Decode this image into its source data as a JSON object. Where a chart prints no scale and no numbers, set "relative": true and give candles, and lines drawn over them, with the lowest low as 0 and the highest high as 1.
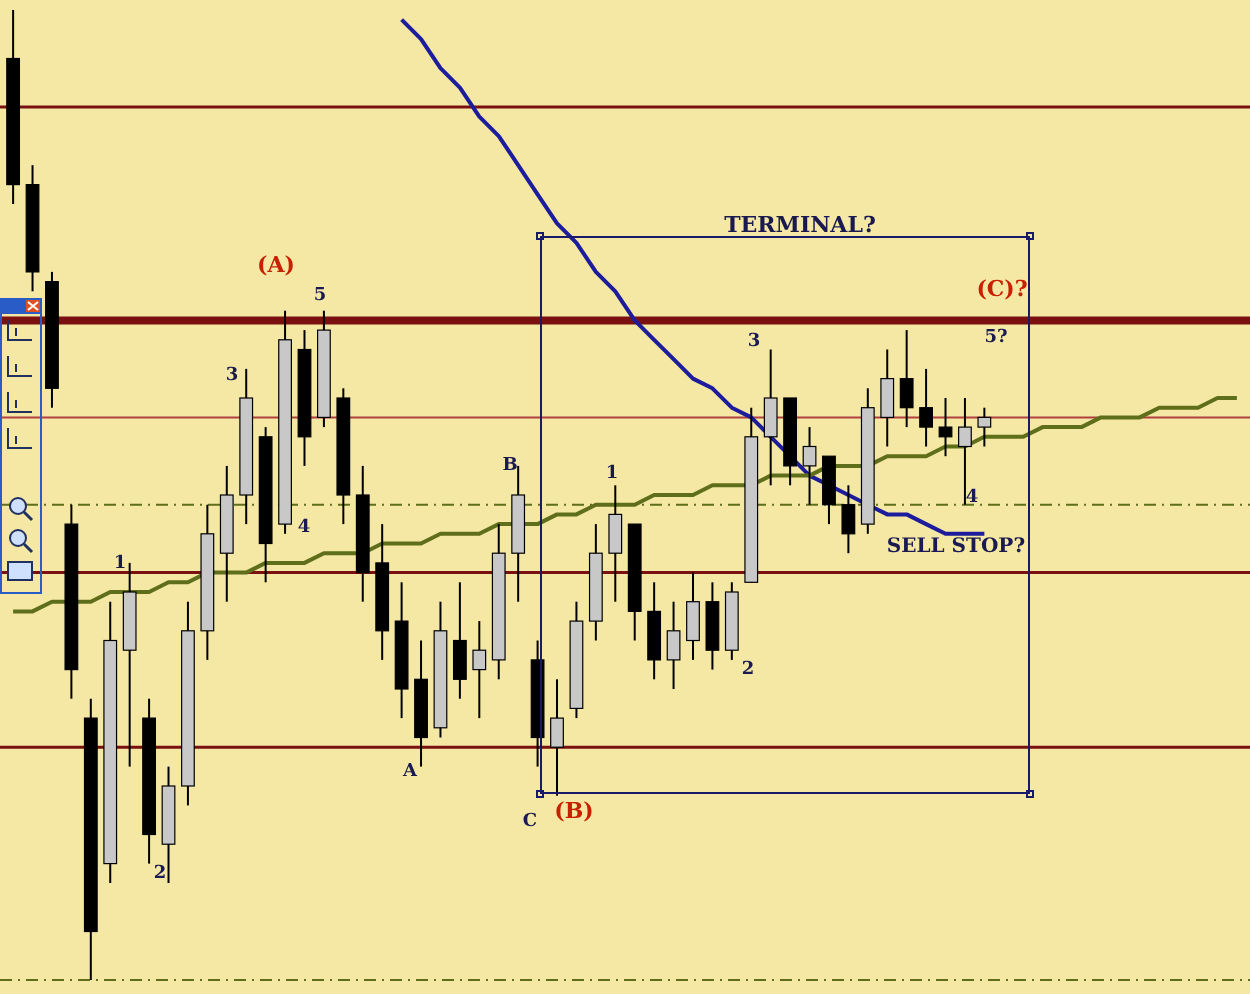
{
  "chart_data": {
    "type": "candlestick",
    "relative": true,
    "categories": [
      null,
      null,
      null,
      null,
      null,
      null,
      null,
      null,
      null,
      null,
      null,
      null,
      null,
      null,
      null,
      null,
      null,
      null,
      null,
      null,
      null,
      null,
      null,
      null,
      null,
      null,
      null,
      null,
      null,
      null,
      null,
      null,
      null,
      null,
      null,
      null,
      null,
      null,
      null,
      null,
      null,
      null,
      null,
      null,
      null,
      null,
      null,
      null,
      null,
      null,
      null,
      null,
      null,
      null,
      null,
      null,
      null,
      null,
      null,
      null,
      null,
      null,
      null,
      null
    ],
    "series": [
      {
        "type": "candlestick",
        "color": "#000000",
        "ohlc": [
          [
            0.95,
            1.0,
            0.8,
            0.82
          ],
          [
            0.82,
            0.84,
            0.71,
            0.73
          ],
          [
            0.72,
            0.73,
            0.59,
            0.61
          ],
          [
            0.47,
            0.49,
            0.29,
            0.32
          ],
          [
            0.27,
            0.29,
            0.0,
            0.05
          ],
          [
            0.12,
            0.39,
            0.1,
            0.35
          ],
          [
            0.34,
            0.43,
            0.22,
            0.4
          ],
          [
            0.27,
            0.29,
            0.12,
            0.15
          ],
          [
            0.14,
            0.22,
            0.1,
            0.2
          ],
          [
            0.2,
            0.39,
            0.18,
            0.36
          ],
          [
            0.36,
            0.49,
            0.33,
            0.46
          ],
          [
            0.44,
            0.53,
            0.39,
            0.5
          ],
          [
            0.5,
            0.63,
            0.47,
            0.6
          ],
          [
            0.56,
            0.57,
            0.41,
            0.45
          ],
          [
            0.47,
            0.69,
            0.46,
            0.66
          ],
          [
            0.65,
            0.67,
            0.53,
            0.56
          ],
          [
            0.58,
            0.69,
            0.57,
            0.67
          ],
          [
            0.6,
            0.61,
            0.47,
            0.5
          ],
          [
            0.5,
            0.53,
            0.39,
            0.42
          ],
          [
            0.43,
            0.47,
            0.33,
            0.36
          ],
          [
            0.37,
            0.41,
            0.27,
            0.3
          ],
          [
            0.31,
            0.35,
            0.22,
            0.25
          ],
          [
            0.26,
            0.39,
            0.25,
            0.36
          ],
          [
            0.35,
            0.41,
            0.29,
            0.31
          ],
          [
            0.32,
            0.37,
            0.27,
            0.34
          ],
          [
            0.33,
            0.47,
            0.31,
            0.44
          ],
          [
            0.44,
            0.53,
            0.39,
            0.5
          ],
          [
            0.33,
            0.35,
            0.22,
            0.25
          ],
          [
            0.24,
            0.31,
            0.19,
            0.27
          ],
          [
            0.28,
            0.39,
            0.27,
            0.37
          ],
          [
            0.37,
            0.47,
            0.35,
            0.44
          ],
          [
            0.44,
            0.51,
            0.39,
            0.48
          ],
          [
            0.47,
            0.47,
            0.35,
            0.38
          ],
          [
            0.38,
            0.41,
            0.31,
            0.33
          ],
          [
            0.33,
            0.39,
            0.3,
            0.36
          ],
          [
            0.35,
            0.42,
            0.33,
            0.39
          ],
          [
            0.39,
            0.41,
            0.32,
            0.34
          ],
          [
            0.34,
            0.41,
            0.33,
            0.4
          ],
          [
            0.41,
            0.59,
            0.41,
            0.56
          ],
          [
            0.56,
            0.65,
            0.51,
            0.6
          ],
          [
            0.6,
            0.6,
            0.51,
            0.53
          ],
          [
            0.53,
            0.57,
            0.49,
            0.55
          ],
          [
            0.54,
            0.54,
            0.47,
            0.49
          ],
          [
            0.49,
            0.51,
            0.44,
            0.46
          ],
          [
            0.47,
            0.61,
            0.46,
            0.59
          ],
          [
            0.58,
            0.65,
            0.55,
            0.62
          ],
          [
            0.62,
            0.67,
            0.57,
            0.59
          ],
          [
            0.59,
            0.63,
            0.55,
            0.57
          ],
          [
            0.57,
            0.6,
            0.54,
            0.56
          ],
          [
            0.55,
            0.6,
            0.49,
            0.57
          ],
          [
            0.57,
            0.59,
            0.55,
            0.58
          ],
          null,
          null,
          null,
          null,
          null,
          null,
          null,
          null,
          null,
          null,
          null,
          null,
          null
        ]
      },
      {
        "type": "line",
        "color": "#1c1c9c",
        "values": [
          null,
          null,
          null,
          null,
          null,
          null,
          null,
          null,
          null,
          null,
          null,
          null,
          null,
          null,
          null,
          null,
          null,
          null,
          null,
          null,
          0.99,
          0.97,
          0.94,
          0.92,
          0.89,
          0.87,
          0.84,
          0.81,
          0.78,
          0.76,
          0.73,
          0.71,
          0.68,
          0.66,
          0.64,
          0.62,
          0.61,
          0.59,
          0.58,
          0.56,
          0.54,
          0.52,
          0.51,
          0.5,
          0.49,
          0.48,
          0.48,
          0.47,
          0.46,
          0.46,
          0.46,
          null,
          null,
          null,
          null,
          null,
          null,
          null,
          null,
          null,
          null,
          null,
          null,
          null
        ]
      },
      {
        "type": "line",
        "color": "#5f6e1a",
        "values": [
          0.38,
          0.38,
          0.39,
          0.39,
          0.39,
          0.4,
          0.4,
          0.4,
          0.41,
          0.41,
          0.42,
          0.42,
          0.42,
          0.43,
          0.43,
          0.43,
          0.44,
          0.44,
          0.44,
          0.45,
          0.45,
          0.45,
          0.46,
          0.46,
          0.46,
          0.47,
          0.47,
          0.47,
          0.48,
          0.48,
          0.49,
          0.49,
          0.49,
          0.5,
          0.5,
          0.5,
          0.51,
          0.51,
          0.51,
          0.52,
          0.52,
          0.52,
          0.53,
          0.53,
          0.53,
          0.54,
          0.54,
          0.54,
          0.55,
          0.55,
          0.56,
          0.56,
          0.56,
          0.57,
          0.57,
          0.57,
          0.58,
          0.58,
          0.58,
          0.59,
          0.59,
          0.59,
          0.6,
          0.6
        ]
      }
    ],
    "ref_lines": [
      {
        "axis": "y",
        "value": 0.9,
        "color": "#7a1010",
        "line_style": "solid"
      },
      {
        "axis": "y",
        "value": 0.68,
        "color": "#7a1010",
        "line_style": "solid"
      },
      {
        "axis": "y",
        "value": 0.58,
        "color": "#b04040",
        "line_style": "solid"
      },
      {
        "axis": "y",
        "value": 0.49,
        "color": "#5f6e1a",
        "line_style": "dashed"
      },
      {
        "axis": "y",
        "value": 0.42,
        "color": "#7a1010",
        "line_style": "solid"
      },
      {
        "axis": "y",
        "value": 0.24,
        "color": "#7a1010",
        "line_style": "solid"
      },
      {
        "axis": "y",
        "value": 0.0,
        "color": "#5f6e1a",
        "line_style": "dashed"
      }
    ],
    "annotations": [
      "(A)",
      "5",
      "3",
      "4",
      "1",
      "2",
      "A",
      "B",
      "C",
      "(B)",
      "1",
      "2",
      "3",
      "4",
      "(C)?",
      "5?",
      "TERMINAL?",
      "SELL STOP?"
    ]
  }
}
